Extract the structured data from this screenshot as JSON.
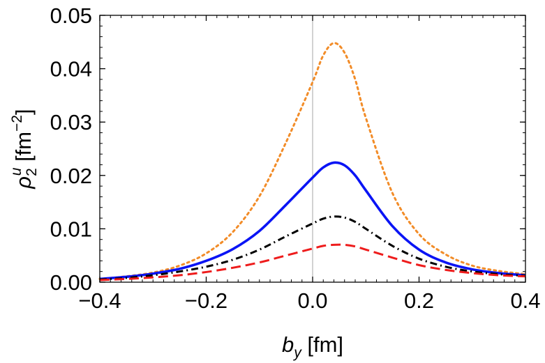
{
  "chart_data": {
    "type": "line",
    "xlabel_base": "b",
    "xlabel_sub": "y",
    "xlabel_unit": " [fm]",
    "ylabel_base": "ρ",
    "ylabel_sub": "2",
    "ylabel_sup": "u",
    "ylabel_unit": " [fm",
    "ylabel_unit_sup": "−2",
    "ylabel_unit_close": "]",
    "xlim": [
      -0.4,
      0.4
    ],
    "ylim": [
      0.0,
      0.05
    ],
    "x_ticks": [
      -0.4,
      -0.2,
      0.0,
      0.2,
      0.4
    ],
    "x_tick_labels": [
      "−0.4",
      "−0.2",
      "0.0",
      "0.2",
      "0.4"
    ],
    "y_ticks": [
      0.0,
      0.01,
      0.02,
      0.03,
      0.04,
      0.05
    ],
    "y_tick_labels": [
      "0.00",
      "0.01",
      "0.02",
      "0.03",
      "0.04",
      "0.05"
    ],
    "zero_line_x": 0.0,
    "grid": false,
    "series": [
      {
        "color": "#f28c28",
        "style": "dotted",
        "x": [
          -0.4,
          -0.35,
          -0.3,
          -0.25,
          -0.2,
          -0.15,
          -0.1,
          -0.05,
          0.0,
          0.02,
          0.04,
          0.06,
          0.08,
          0.1,
          0.15,
          0.2,
          0.25,
          0.3,
          0.35,
          0.4
        ],
        "y": [
          0.0006,
          0.0011,
          0.0018,
          0.0031,
          0.0054,
          0.0094,
          0.0161,
          0.0262,
          0.0375,
          0.0425,
          0.0448,
          0.043,
          0.038,
          0.0308,
          0.0167,
          0.009,
          0.0052,
          0.0031,
          0.0021,
          0.0015
        ]
      },
      {
        "color": "#0a14f5",
        "style": "solid",
        "x": [
          -0.4,
          -0.35,
          -0.3,
          -0.25,
          -0.2,
          -0.15,
          -0.1,
          -0.05,
          0.0,
          0.02,
          0.04,
          0.06,
          0.08,
          0.1,
          0.15,
          0.2,
          0.25,
          0.3,
          0.35,
          0.4
        ],
        "y": [
          0.0006,
          0.001,
          0.0016,
          0.0025,
          0.004,
          0.0062,
          0.0096,
          0.0145,
          0.0196,
          0.0215,
          0.0224,
          0.0219,
          0.02,
          0.0172,
          0.0105,
          0.0061,
          0.0037,
          0.0024,
          0.0017,
          0.0013
        ]
      },
      {
        "color": "#000000",
        "style": "dashdot",
        "x": [
          -0.4,
          -0.35,
          -0.3,
          -0.25,
          -0.2,
          -0.15,
          -0.1,
          -0.05,
          0.0,
          0.02,
          0.04,
          0.06,
          0.08,
          0.1,
          0.15,
          0.2,
          0.25,
          0.3,
          0.35,
          0.4
        ],
        "y": [
          0.0005,
          0.0008,
          0.0013,
          0.002,
          0.0029,
          0.0042,
          0.0061,
          0.0086,
          0.011,
          0.0119,
          0.0123,
          0.0121,
          0.0113,
          0.01,
          0.0068,
          0.0044,
          0.0029,
          0.002,
          0.0015,
          0.0012
        ]
      },
      {
        "color": "#ee1c1c",
        "style": "dashed",
        "x": [
          -0.4,
          -0.35,
          -0.3,
          -0.25,
          -0.2,
          -0.15,
          -0.1,
          -0.05,
          0.0,
          0.02,
          0.04,
          0.06,
          0.08,
          0.1,
          0.15,
          0.2,
          0.25,
          0.3,
          0.35,
          0.4
        ],
        "y": [
          0.0004,
          0.0006,
          0.0009,
          0.0013,
          0.0019,
          0.0027,
          0.0037,
          0.005,
          0.0063,
          0.0068,
          0.007,
          0.007,
          0.0067,
          0.0061,
          0.0046,
          0.0032,
          0.0023,
          0.0017,
          0.0013,
          0.0011
        ]
      }
    ]
  }
}
